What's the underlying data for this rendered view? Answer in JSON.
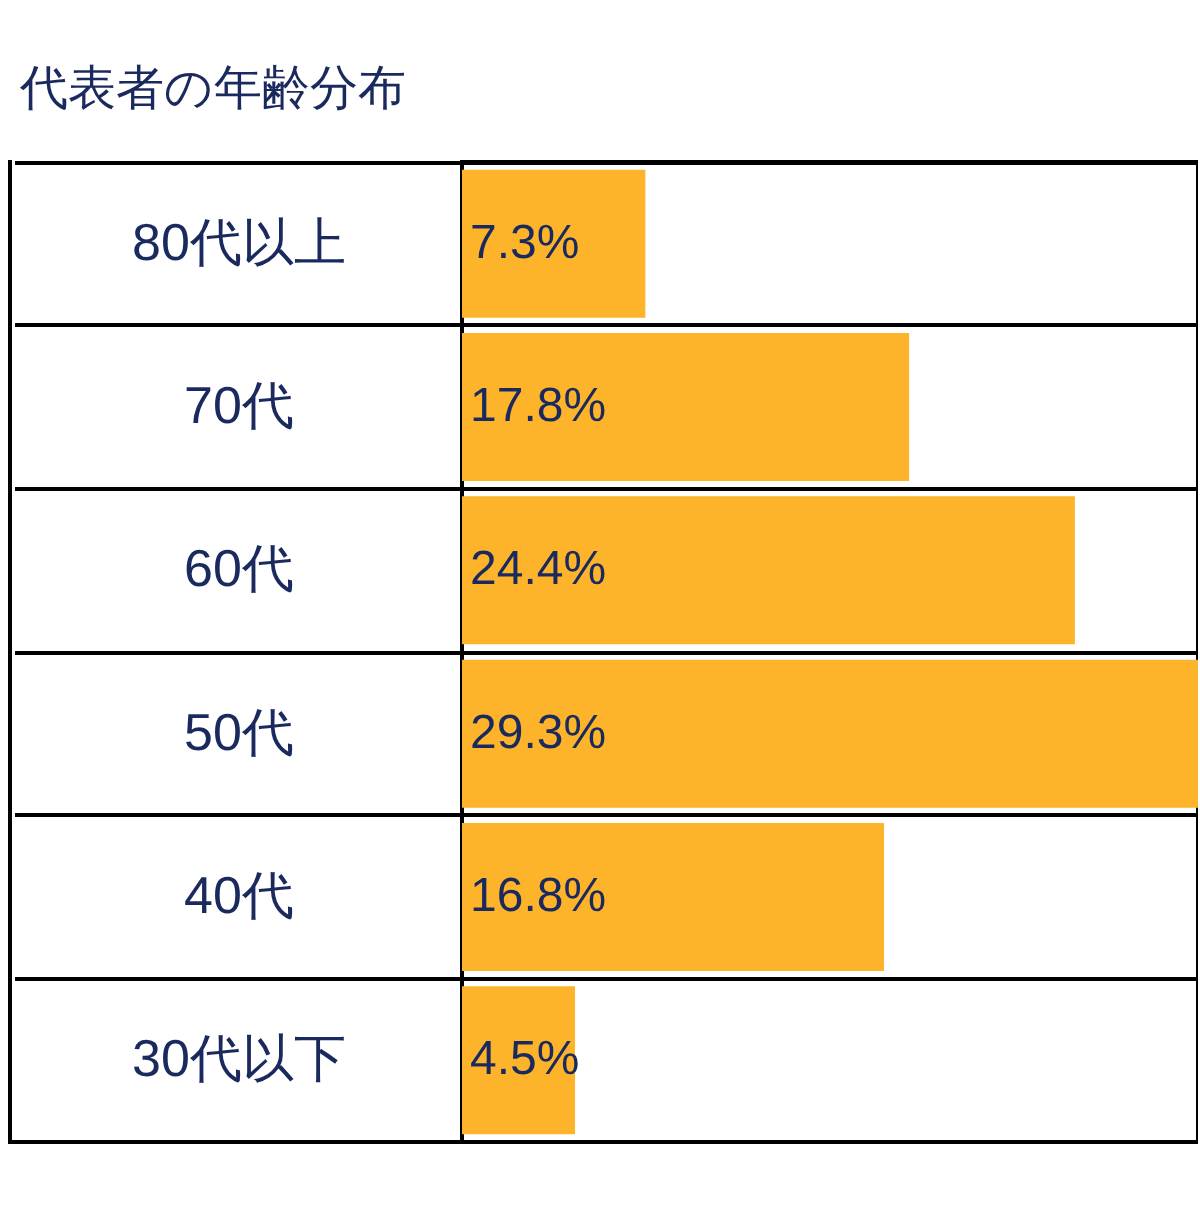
{
  "chart_data": {
    "type": "bar",
    "orientation": "horizontal",
    "title": "代表者の年齢分布",
    "categories": [
      "80代以上",
      "70代",
      "60代",
      "50代",
      "40代",
      "30代以下"
    ],
    "values": [
      7.3,
      17.8,
      24.4,
      29.3,
      16.8,
      4.5
    ],
    "value_labels": [
      "7.3%",
      "17.8%",
      "24.4%",
      "29.3%",
      "16.8%",
      "4.5%"
    ],
    "color": "#fdb42a"
  }
}
